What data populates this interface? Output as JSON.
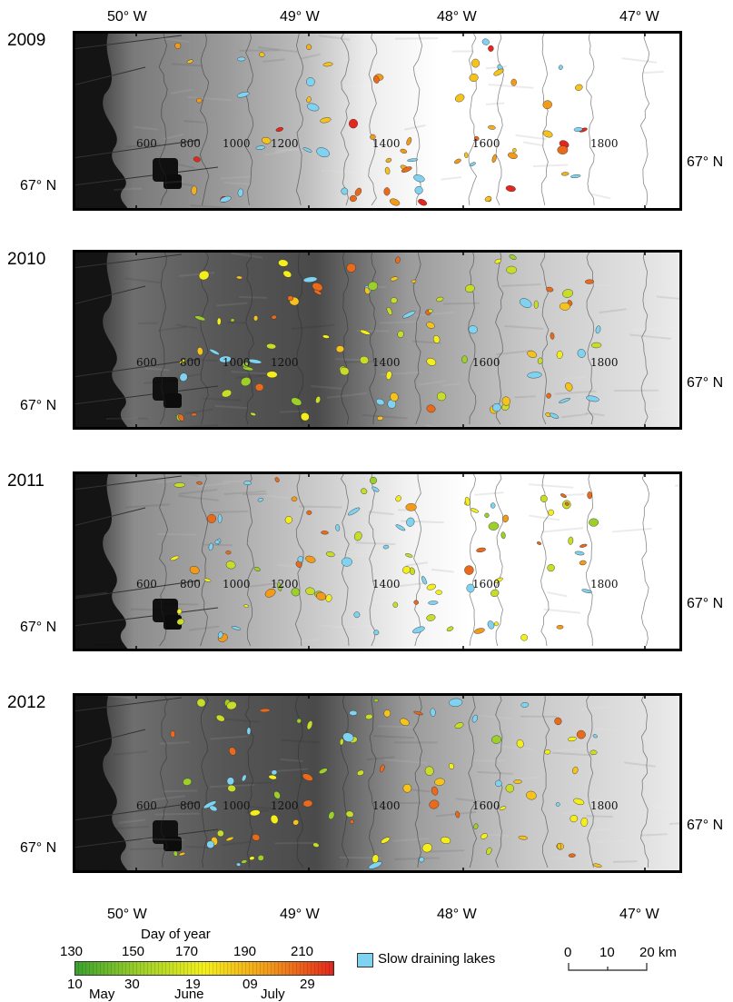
{
  "top_axis": [
    "50° W",
    "49° W",
    "48° W",
    "47° W"
  ],
  "bottom_axis": [
    "50° W",
    "49° W",
    "48° W",
    "47° W"
  ],
  "lat_label": "67° N",
  "contours": [
    "600",
    "800",
    "1000",
    "1200",
    "1400",
    "1600",
    "1800"
  ],
  "panels": [
    {
      "year": "2009",
      "phase": "late"
    },
    {
      "year": "2010",
      "phase": "early"
    },
    {
      "year": "2011",
      "phase": "mid"
    },
    {
      "year": "2012",
      "phase": "early"
    }
  ],
  "legend": {
    "title": "Day of year",
    "top_ticks": [
      "130",
      "150",
      "170",
      "190",
      "210"
    ],
    "bottom_ticks": [
      "10",
      "30",
      "19",
      "09",
      "29"
    ],
    "months": [
      "May",
      "June",
      "July"
    ],
    "slow_lakes_label": "Slow draining lakes",
    "slow_lakes_color": "#7fd3f0",
    "gradient": [
      "#3aa12e",
      "#9ccf2a",
      "#f4ef1c",
      "#f29a1a",
      "#e4261c"
    ]
  },
  "scale_bar": {
    "ticks": [
      "0",
      "10",
      "20 km"
    ]
  }
}
